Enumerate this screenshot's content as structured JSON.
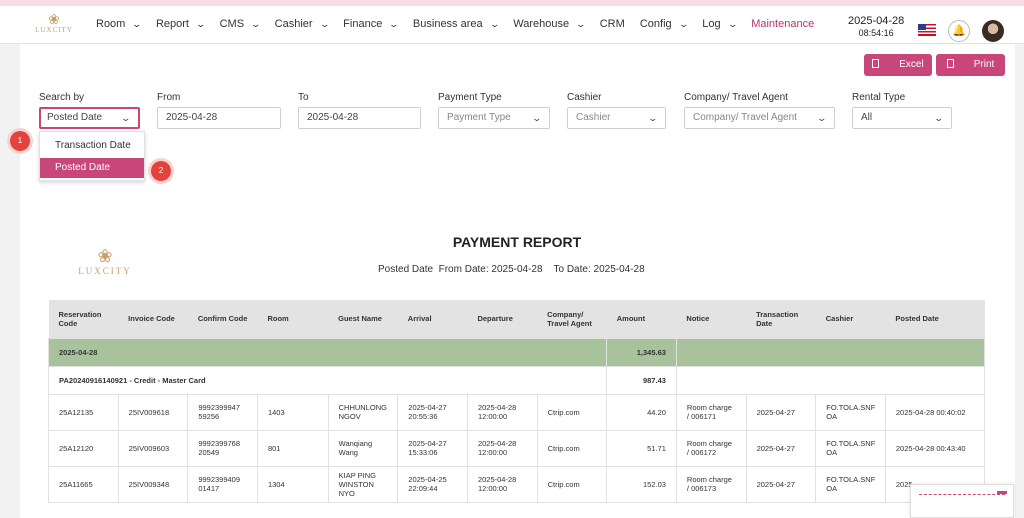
{
  "brand": {
    "name": "LUXCITY",
    "color": "#c9a06b"
  },
  "nav": {
    "items": [
      {
        "label": "Room",
        "dropdown": true
      },
      {
        "label": "Report",
        "dropdown": true
      },
      {
        "label": "CMS",
        "dropdown": true
      },
      {
        "label": "Cashier",
        "dropdown": true
      },
      {
        "label": "Finance",
        "dropdown": true
      },
      {
        "label": "Business area",
        "dropdown": true
      },
      {
        "label": "Warehouse",
        "dropdown": true
      },
      {
        "label": "CRM",
        "dropdown": false
      },
      {
        "label": "Config",
        "dropdown": true
      },
      {
        "label": "Log",
        "dropdown": true
      },
      {
        "label": "Maintenance",
        "dropdown": false,
        "active": true
      }
    ],
    "date": "2025-04-28",
    "time": "08:54:16",
    "accent": "#b8336a"
  },
  "toolbar": {
    "excel_label": "Excel",
    "print_label": "Print"
  },
  "filters": {
    "search_by": {
      "label": "Search by",
      "value": "Posted Date"
    },
    "from": {
      "label": "From",
      "value": "2025-04-28"
    },
    "to": {
      "label": "To",
      "value": "2025-04-28"
    },
    "payment_type": {
      "label": "Payment Type",
      "placeholder": "Payment Type"
    },
    "cashier": {
      "label": "Cashier",
      "placeholder": "Cashier"
    },
    "company": {
      "label": "Company/ Travel Agent",
      "placeholder": "Company/ Travel Agent"
    },
    "rental_type": {
      "label": "Rental Type",
      "value": "All"
    }
  },
  "dropdown": {
    "options": [
      "Transaction Date",
      "Posted Date"
    ],
    "selected": "Posted Date"
  },
  "badges": [
    "1",
    "2"
  ],
  "report": {
    "title": "PAYMENT REPORT",
    "criteria": "Posted Date",
    "from_text": "From Date: 2025-04-28",
    "to_text": "To Date: 2025-04-28",
    "columns": [
      "Reservation Code",
      "Invoice Code",
      "Confirm Code",
      "Room",
      "Guest Name",
      "Arrival",
      "Departure",
      "Company/ Travel Agent",
      "Amount",
      "Notice",
      "Transaction Date",
      "Cashier",
      "Posted Date"
    ],
    "group": {
      "date": "2025-04-28",
      "amount": "1,345.63"
    },
    "subgroup": {
      "label": "PA20240916140921 - Credit - Master Card",
      "amount": "987.43"
    },
    "rows": [
      {
        "res": "25A12135",
        "inv": "25IV009618",
        "confirm": "9992399947 59256",
        "room": "1403",
        "guest": "CHHUNLONG NGOV",
        "arrival": "2025-04-27 20:55:36",
        "departure": "2025-04-28 12:00:00",
        "company": "Ctrip.com",
        "amount": "44.20",
        "notice": "Room charge / 006171",
        "trans": "2025-04-27",
        "cashier": "FO.TOLA.SNF OA",
        "posted": "2025-04-28 00:40:02"
      },
      {
        "res": "25A12120",
        "inv": "25IV009603",
        "confirm": "9992399768 20549",
        "room": "801",
        "guest": "Wanqiang Wang",
        "arrival": "2025-04-27 15:33:06",
        "departure": "2025-04-28 12:00:00",
        "company": "Ctrip.com",
        "amount": "51.71",
        "notice": "Room charge / 006172",
        "trans": "2025-04-27",
        "cashier": "FO.TOLA.SNF OA",
        "posted": "2025-04-28 00:43:40"
      },
      {
        "res": "25A11665",
        "inv": "25IV009348",
        "confirm": "9992399409 01417",
        "room": "1304",
        "guest": "KIAP PING WINSTON NYO",
        "arrival": "2025-04-25 22:09:44",
        "departure": "2025-04-28 12:00:00",
        "company": "Ctrip.com",
        "amount": "152.03",
        "notice": "Room charge / 006173",
        "trans": "2025-04-27",
        "cashier": "FO.TOLA.SNF OA",
        "posted": "2025"
      }
    ]
  }
}
